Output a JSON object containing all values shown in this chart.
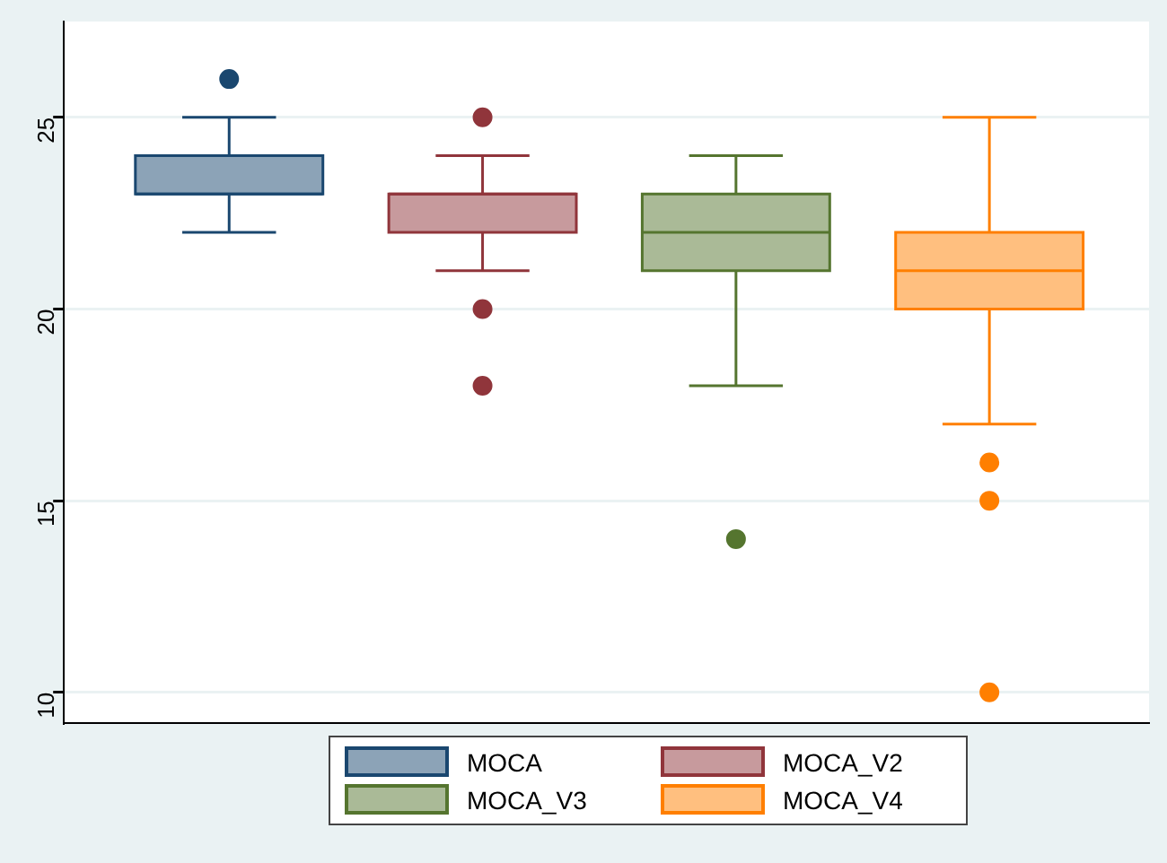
{
  "chart_data": {
    "type": "box",
    "categories": [
      null
    ],
    "ylim": [
      9.2,
      27.5
    ],
    "yticks": [
      10,
      15,
      20,
      25
    ],
    "grid": "y",
    "legend": "bottom",
    "tick_labels": "y",
    "series": [
      {
        "name": "MOCA",
        "color": "#1a476f",
        "boxes": [
          {
            "low": 22,
            "q1": 23,
            "median": 23,
            "q3": 24,
            "high": 25,
            "outliers": [
              26
            ]
          }
        ]
      },
      {
        "name": "MOCA_V2",
        "color": "#90353b",
        "boxes": [
          {
            "low": 21,
            "q1": 22,
            "median": 23,
            "q3": 23,
            "high": 24,
            "outliers": [
              25,
              20,
              18
            ]
          }
        ]
      },
      {
        "name": "MOCA_V3",
        "color": "#55752f",
        "boxes": [
          {
            "low": 18,
            "q1": 21,
            "median": 22,
            "q3": 23,
            "high": 24,
            "outliers": [
              14
            ]
          }
        ]
      },
      {
        "name": "MOCA_V4",
        "color": "#ff7f00",
        "boxes": [
          {
            "low": 17,
            "q1": 20,
            "median": 21,
            "q3": 22,
            "high": 25,
            "outliers": [
              16,
              15,
              10
            ]
          }
        ]
      }
    ]
  }
}
